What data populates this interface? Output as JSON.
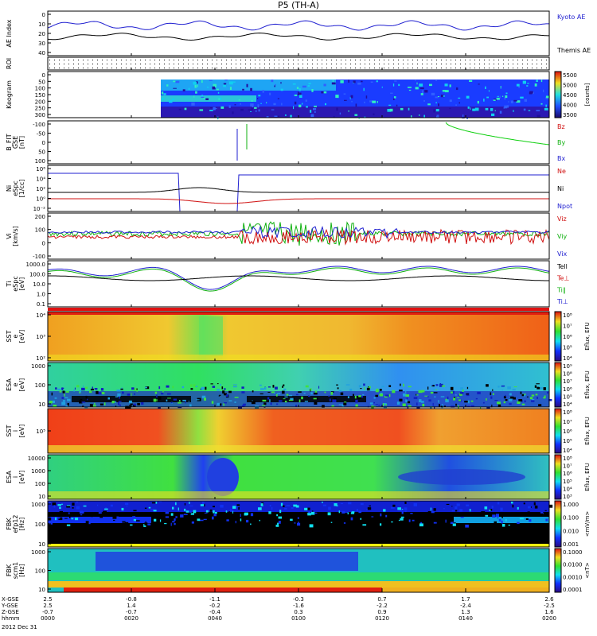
{
  "chart_data": {
    "type": "line",
    "title": "P5 (TH-A)",
    "date_label": "2012 Dec 31",
    "time_ticks": [
      "0000",
      "0020",
      "0040",
      "0100",
      "0120",
      "0140",
      "0200"
    ],
    "footer_rows": [
      {
        "label": "X-GSE",
        "values": [
          "2.5",
          "-0.8",
          "-1.1",
          "-0.3",
          "0.7",
          "1.7",
          "2.6"
        ]
      },
      {
        "label": "Y-GSE",
        "values": [
          "2.5",
          "1.4",
          "-0.2",
          "-1.6",
          "-2.2",
          "-2.4",
          "-2.5"
        ]
      },
      {
        "label": "Z-GSE",
        "values": [
          "-0.7",
          "-0.7",
          "-0.4",
          "0.3",
          "0.9",
          "1.3",
          "1.6"
        ]
      },
      {
        "label": "hhmm",
        "values": [
          "0000",
          "0020",
          "0040",
          "0100",
          "0120",
          "0140",
          "0200"
        ]
      }
    ],
    "panels": [
      {
        "id": "ae",
        "ylabel": "AE Index",
        "yticks": [
          "0",
          "10",
          "20",
          "30",
          "40"
        ],
        "legend": [
          {
            "name": "Kyoto AE",
            "color": "#1f1fd0"
          },
          {
            "name": "Themis AE",
            "color": "#000000"
          }
        ]
      },
      {
        "id": "roi",
        "ylabel": "ROI",
        "yticks": []
      },
      {
        "id": "keogram",
        "ylabel": "Keogram",
        "yticks": [
          "0",
          "50",
          "100",
          "150",
          "200",
          "250",
          "300"
        ],
        "colorbar": {
          "ticks": [
            "5500",
            "5000",
            "4500",
            "4000",
            "3500"
          ],
          "unit": "[counts]"
        }
      },
      {
        "id": "bfit",
        "ylabel": "B_FIT",
        "ylabel2": "GSE",
        "ylabel3": "[nT]",
        "yticks": [
          "-100",
          "-50",
          "0",
          "50",
          "100"
        ],
        "legend": [
          {
            "name": "Bz",
            "color": "#d01010"
          },
          {
            "name": "By",
            "color": "#10b010"
          },
          {
            "name": "Bx",
            "color": "#1f1fd0"
          }
        ]
      },
      {
        "id": "ni",
        "ylabel": "Ni",
        "ylabel2": "eSpc",
        "ylabel3": "[1/cc]",
        "yticks": [
          "10⁶",
          "10⁴",
          "10²",
          "10⁰",
          "10⁻²"
        ],
        "legend": [
          {
            "name": "Ne",
            "color": "#d01010"
          },
          {
            "name": "Ni",
            "color": "#000000"
          },
          {
            "name": "Npot",
            "color": "#1f1fd0"
          }
        ]
      },
      {
        "id": "vi",
        "ylabel": "Vi",
        "ylabel3": "[km/s]",
        "yticks": [
          "200",
          "100",
          "0",
          "-100"
        ],
        "legend": [
          {
            "name": "Viz",
            "color": "#d01010"
          },
          {
            "name": "Viy",
            "color": "#10b010"
          },
          {
            "name": "Vix",
            "color": "#1f1fd0"
          }
        ]
      },
      {
        "id": "ti",
        "ylabel": "Ti",
        "ylabel2": "eSpc",
        "ylabel3": "[eV]",
        "yticks": [
          "1000.0",
          "100.0",
          "10.0",
          "1.0",
          "0.1"
        ],
        "legend": [
          {
            "name": "Tell",
            "color": "#000000"
          },
          {
            "name": "Te⊥",
            "color": "#d01010"
          },
          {
            "name": "Ti∥",
            "color": "#10b010"
          },
          {
            "name": "Ti⊥",
            "color": "#1f1fd0"
          }
        ]
      },
      {
        "id": "sst_e",
        "ylabel": "SST",
        "ylabel2": "e",
        "ylabel3": "[eV]",
        "yticks": [
          "10⁴",
          "10³",
          "10²"
        ],
        "colorbar": {
          "ticks": [
            "10⁸",
            "10⁷",
            "10⁶",
            "10⁵",
            "10⁴"
          ],
          "unit": "Eflux, EFU"
        }
      },
      {
        "id": "esa_e",
        "ylabel": "ESA",
        "ylabel2": "e",
        "ylabel3": "[eV]",
        "yticks": [
          "1000",
          "100",
          "10"
        ],
        "colorbar": {
          "ticks": [
            "10⁹",
            "10⁸",
            "10⁷",
            "10⁶",
            "10⁵",
            "10⁴"
          ],
          "unit": "Eflux, EFU"
        }
      },
      {
        "id": "sst_i",
        "ylabel": "SST",
        "ylabel2": "i",
        "ylabel3": "[eV]",
        "yticks": [
          "10⁵"
        ],
        "colorbar": {
          "ticks": [
            "10⁸",
            "10⁷",
            "10⁶",
            "10⁵",
            "10⁴"
          ],
          "unit": "Eflux, EFU"
        }
      },
      {
        "id": "esa_i",
        "ylabel": "ESA",
        "ylabel2": "i",
        "ylabel3": "[eV]",
        "yticks": [
          "10000",
          "1000",
          "100",
          "10"
        ],
        "colorbar": {
          "ticks": [
            "10⁸",
            "10⁷",
            "10⁶",
            "10⁵",
            "10⁴",
            "10³"
          ],
          "unit": "Eflux, EFU"
        }
      },
      {
        "id": "fbk_e",
        "ylabel": "FBK",
        "ylabel2": "efp12",
        "ylabel3": "[Hz]",
        "yticks": [
          "1000",
          "100",
          "10"
        ],
        "colorbar": {
          "ticks": [
            "1.000",
            "0.100",
            "0.010",
            "0.001"
          ],
          "unit": "<mV/m>"
        }
      },
      {
        "id": "fbk_b",
        "ylabel": "FBK",
        "ylabel2": "scm1",
        "ylabel3": "[Hz]",
        "yticks": [
          "1000",
          "100",
          "10"
        ],
        "colorbar": {
          "ticks": [
            "0.1000",
            "0.0100",
            "0.0010",
            "0.0001"
          ],
          "unit": "<nT>"
        }
      }
    ]
  }
}
